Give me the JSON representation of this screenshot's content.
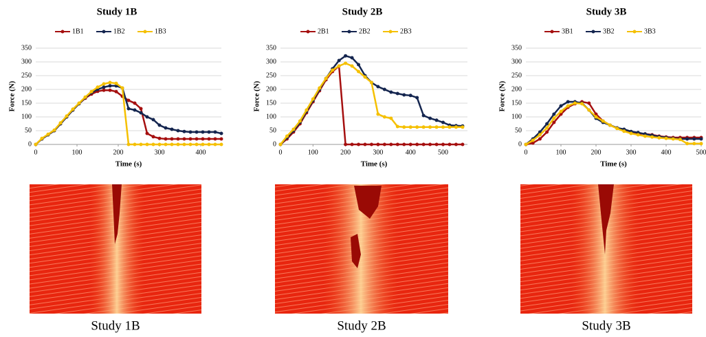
{
  "chart_data": [
    {
      "type": "line",
      "title": "Study 1B",
      "x_label": "Time (s)",
      "y_label": "Force (N)",
      "x": [
        0,
        15,
        30,
        45,
        60,
        75,
        90,
        105,
        120,
        135,
        150,
        165,
        180,
        195,
        210,
        225,
        240,
        255,
        270,
        285,
        300,
        315,
        330,
        345,
        360,
        375,
        390,
        405,
        420,
        435,
        450
      ],
      "series": [
        {
          "name": "1B1",
          "color": "#a50f0f",
          "values": [
            0,
            20,
            35,
            50,
            75,
            100,
            125,
            148,
            168,
            183,
            193,
            197,
            197,
            192,
            175,
            160,
            150,
            130,
            40,
            28,
            22,
            20,
            20,
            20,
            20,
            20,
            20,
            20,
            20,
            20,
            20
          ]
        },
        {
          "name": "1B2",
          "color": "#14254f",
          "values": [
            0,
            20,
            35,
            50,
            75,
            100,
            125,
            148,
            170,
            188,
            200,
            208,
            213,
            213,
            205,
            130,
            125,
            115,
            100,
            90,
            70,
            60,
            55,
            50,
            47,
            45,
            45,
            45,
            45,
            45,
            40
          ]
        },
        {
          "name": "1B3",
          "color": "#f5c000",
          "values": [
            0,
            22,
            37,
            52,
            78,
            103,
            128,
            150,
            172,
            192,
            208,
            220,
            225,
            222,
            205,
            0,
            0,
            0,
            0,
            0,
            0,
            0,
            0,
            0,
            0,
            0,
            0,
            0,
            0,
            0,
            0
          ]
        }
      ],
      "xlim": [
        0,
        450
      ],
      "xticks": [
        0,
        100,
        200,
        300,
        400
      ],
      "ylim": [
        0,
        350
      ],
      "yticks": [
        0,
        50,
        100,
        150,
        200,
        250,
        300,
        350
      ],
      "grid": true
    },
    {
      "type": "line",
      "title": "Study 2B",
      "x_label": "Time (s)",
      "y_label": "Force (N)",
      "x": [
        0,
        20,
        40,
        60,
        80,
        100,
        120,
        140,
        160,
        180,
        200,
        220,
        240,
        260,
        280,
        300,
        320,
        340,
        360,
        380,
        400,
        420,
        440,
        460,
        480,
        500,
        520,
        540,
        560
      ],
      "series": [
        {
          "name": "2B1",
          "color": "#a50f0f",
          "values": [
            0,
            20,
            45,
            75,
            115,
            155,
            195,
            235,
            265,
            285,
            0,
            0,
            0,
            0,
            0,
            0,
            0,
            0,
            0,
            0,
            0,
            0,
            0,
            0,
            0,
            0,
            0,
            0,
            0
          ]
        },
        {
          "name": "2B2",
          "color": "#14254f",
          "values": [
            0,
            25,
            50,
            80,
            120,
            160,
            200,
            240,
            275,
            305,
            322,
            315,
            290,
            250,
            225,
            210,
            200,
            190,
            185,
            180,
            178,
            170,
            105,
            95,
            88,
            80,
            70,
            68,
            67
          ]
        },
        {
          "name": "2B3",
          "color": "#f5c000",
          "values": [
            0,
            30,
            55,
            85,
            125,
            165,
            205,
            240,
            270,
            285,
            295,
            285,
            265,
            245,
            225,
            110,
            100,
            95,
            65,
            63,
            63,
            63,
            63,
            63,
            63,
            63,
            63,
            63,
            63
          ]
        }
      ],
      "xlim": [
        0,
        575
      ],
      "xticks": [
        0,
        100,
        200,
        300,
        400,
        500
      ],
      "ylim": [
        0,
        350
      ],
      "yticks": [
        0,
        50,
        100,
        150,
        200,
        250,
        300,
        350
      ],
      "grid": true
    },
    {
      "type": "line",
      "title": "Study 3B",
      "x_label": "Time (s)",
      "y_label": "Force (N)",
      "x": [
        0,
        20,
        40,
        60,
        80,
        100,
        120,
        140,
        160,
        180,
        200,
        220,
        240,
        260,
        280,
        300,
        320,
        340,
        360,
        380,
        400,
        420,
        440,
        460,
        480,
        500
      ],
      "series": [
        {
          "name": "3B1",
          "color": "#a50f0f",
          "values": [
            0,
            5,
            20,
            45,
            80,
            110,
            135,
            148,
            155,
            150,
            110,
            85,
            70,
            60,
            52,
            45,
            40,
            38,
            35,
            30,
            27,
            25,
            25,
            25,
            25,
            25
          ]
        },
        {
          "name": "3B2",
          "color": "#14254f",
          "values": [
            0,
            20,
            45,
            75,
            110,
            140,
            155,
            155,
            150,
            125,
            95,
            80,
            70,
            60,
            55,
            47,
            43,
            38,
            33,
            28,
            25,
            22,
            20,
            20,
            20,
            20
          ]
        },
        {
          "name": "3B3",
          "color": "#f5c000",
          "values": [
            0,
            15,
            35,
            60,
            95,
            120,
            140,
            150,
            148,
            125,
            100,
            85,
            70,
            58,
            48,
            40,
            35,
            30,
            27,
            24,
            22,
            20,
            18,
            3,
            3,
            3
          ]
        }
      ],
      "xlim": [
        0,
        500
      ],
      "xticks": [
        0,
        100,
        200,
        300,
        400,
        500
      ],
      "ylim": [
        0,
        350
      ],
      "yticks": [
        0,
        50,
        100,
        150,
        200,
        250,
        300,
        350
      ],
      "grid": true
    }
  ],
  "captions": [
    "Study 1B",
    "Study 2B",
    "Study 3B"
  ]
}
